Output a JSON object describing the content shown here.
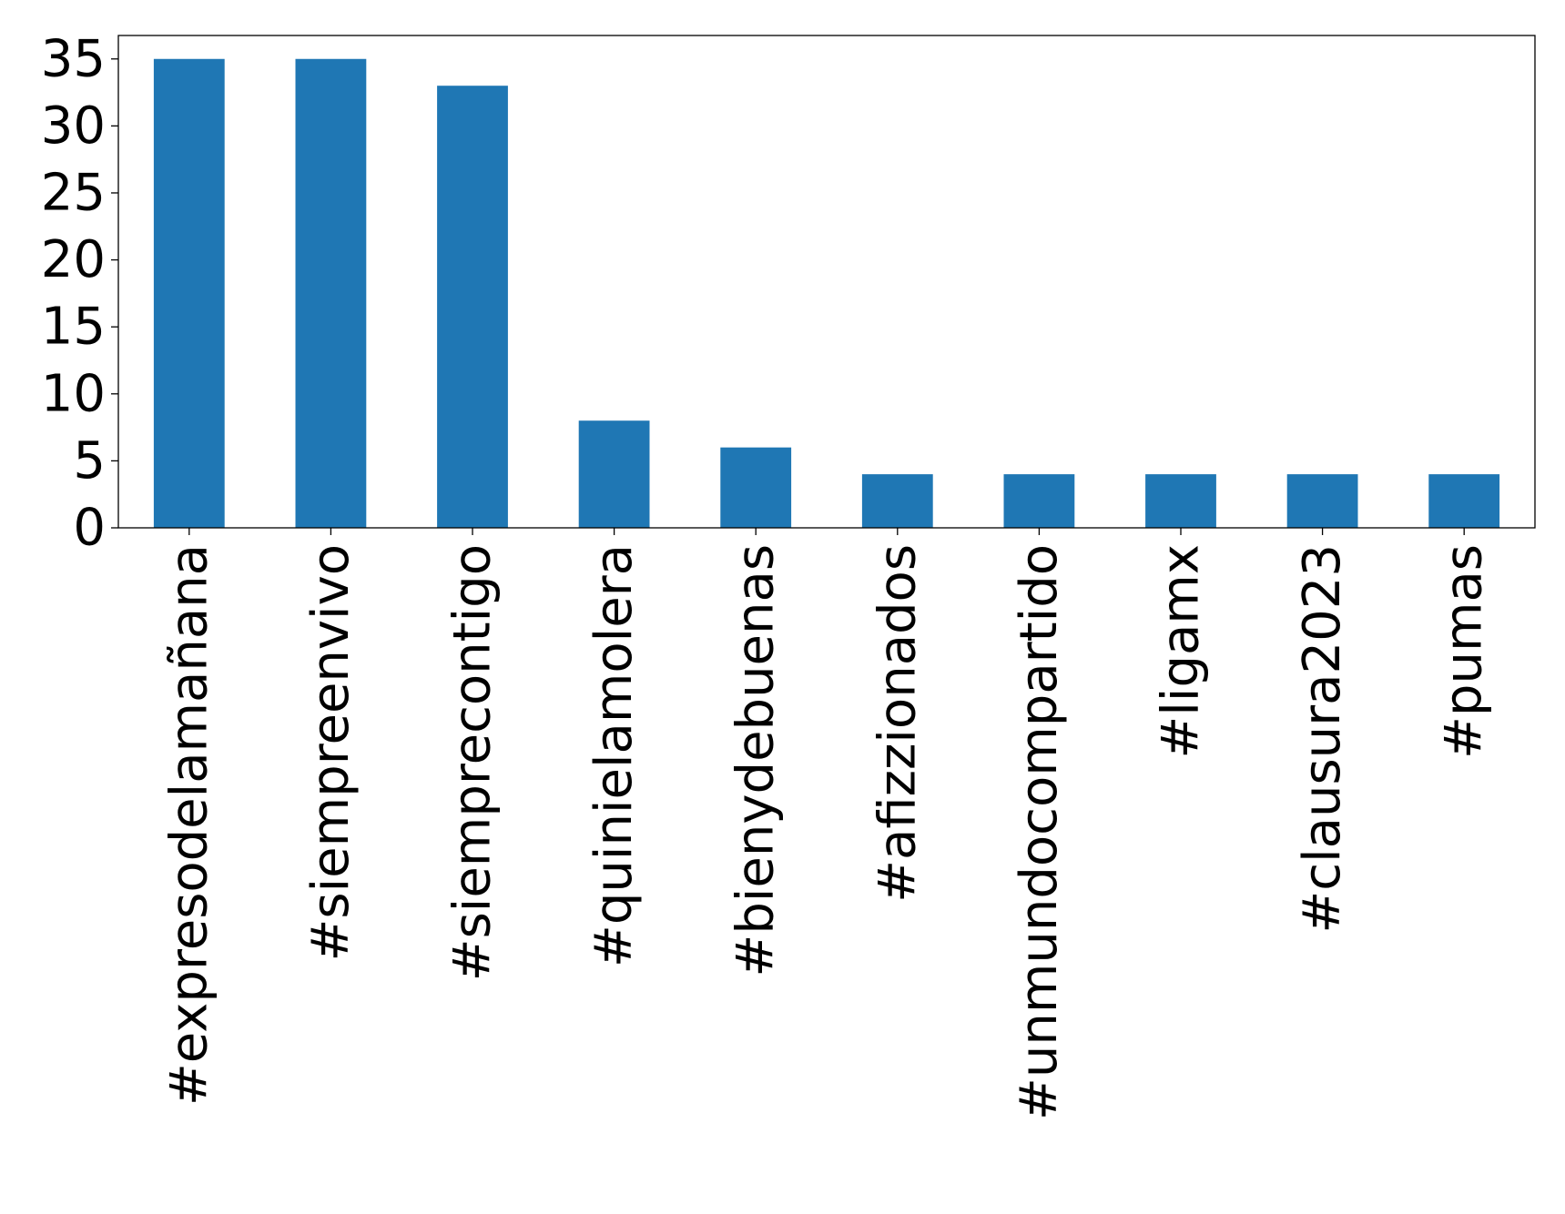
{
  "chart_data": {
    "type": "bar",
    "title": "",
    "xlabel": "",
    "ylabel": "",
    "categories": [
      "#expresodelamañana",
      "#siempreenvivo",
      "#siemprecontigo",
      "#quinielamolera",
      "#bienydebuenas",
      "#afizzionados",
      "#unmundocompartido",
      "#ligamx",
      "#clausura2023",
      "#pumas"
    ],
    "values": [
      35,
      35,
      33,
      8,
      6,
      4,
      4,
      4,
      4,
      4
    ],
    "ylim": [
      0,
      36.75
    ],
    "yticks": [
      0,
      5,
      10,
      15,
      20,
      25,
      30,
      35
    ],
    "grid": false,
    "legend": "none",
    "bar_color": "#1f77b4"
  }
}
